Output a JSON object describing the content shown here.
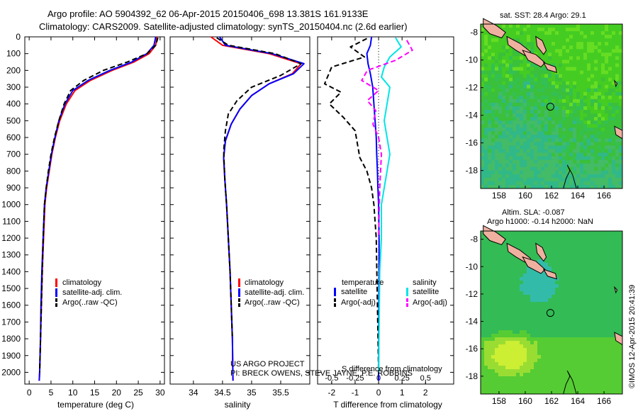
{
  "header": {
    "title_line1": "Argo profile: AO 5904392_62 06-Apr-2015 20150406_698 13.381S 161.9133E",
    "title_line2": "Climatology: CARS2009. Satellite-adjusted climatology: synTS_20150404.nc (2.6d earlier)"
  },
  "colors": {
    "climatology": "#ff0000",
    "satellite": "#0000ff",
    "argo": "#000000",
    "salinity_satellite": "#00e5e5",
    "salinity_argo": "#ff00ff",
    "land": "#f0b0a0",
    "ocean_high": "#33cc33",
    "ocean_low": "#2fb9b0"
  },
  "chart_data": [
    {
      "type": "line",
      "id": "temperature",
      "xlabel": "temperature (deg C)",
      "xlim": [
        -1,
        31
      ],
      "ylim": [
        2070,
        0
      ],
      "xticks": [
        0,
        5,
        10,
        15,
        20,
        25,
        30
      ],
      "yticks": [
        0,
        100,
        200,
        300,
        400,
        500,
        600,
        700,
        800,
        900,
        1000,
        1100,
        1200,
        1300,
        1400,
        1500,
        1600,
        1700,
        1800,
        1900,
        2000
      ],
      "legend": [
        "climatology",
        "satellite-adj. clim.",
        "Argo(..raw -QC)"
      ],
      "series": [
        {
          "name": "climatology",
          "style": "solid",
          "color": "#ff0000",
          "x": [
            29.3,
            29.0,
            27.5,
            24.0,
            19.0,
            14.0,
            10.5,
            8.5,
            7.0,
            6.0,
            5.2,
            4.6,
            4.0,
            3.6,
            3.3,
            3.0,
            2.8,
            2.6,
            2.5,
            2.4,
            2.3
          ],
          "y": [
            0,
            50,
            100,
            150,
            200,
            260,
            320,
            400,
            500,
            600,
            700,
            800,
            900,
            1000,
            1200,
            1400,
            1600,
            1800,
            1900,
            2000,
            2050
          ]
        },
        {
          "name": "satellite-adj. clim.",
          "style": "solid",
          "color": "#0000ff",
          "x": [
            29.0,
            28.6,
            27.0,
            23.5,
            18.5,
            13.5,
            10.0,
            8.2,
            6.8,
            5.9,
            5.1,
            4.5,
            3.9,
            3.5,
            3.2,
            2.9,
            2.7,
            2.6,
            2.5,
            2.4,
            2.3
          ],
          "y": [
            0,
            50,
            100,
            150,
            200,
            260,
            320,
            400,
            500,
            600,
            700,
            800,
            900,
            1000,
            1200,
            1400,
            1600,
            1800,
            1900,
            2000,
            2050
          ]
        },
        {
          "name": "Argo(..raw -QC)",
          "style": "dashed",
          "color": "#000000",
          "x": [
            29.5,
            29.0,
            27.0,
            22.5,
            17.0,
            12.5,
            9.5,
            8.0,
            6.8,
            5.8,
            5.0,
            4.4,
            3.9,
            3.5,
            3.2,
            3.0,
            2.8,
            2.6,
            2.5,
            2.4
          ],
          "y": [
            5,
            50,
            100,
            150,
            200,
            260,
            320,
            400,
            500,
            600,
            700,
            800,
            900,
            1000,
            1200,
            1400,
            1600,
            1800,
            1900,
            2000
          ]
        }
      ]
    },
    {
      "type": "line",
      "id": "salinity",
      "xlabel": "salinity",
      "xlim": [
        33.6,
        36.0
      ],
      "ylim": [
        2070,
        0
      ],
      "xticks": [
        34,
        34.5,
        35,
        35.5
      ],
      "legend": [
        "climatology",
        "satellite-adj. clim.",
        "Argo(..raw -QC)"
      ],
      "series": [
        {
          "name": "climatology",
          "style": "solid",
          "color": "#ff0000",
          "x": [
            34.3,
            34.5,
            35.3,
            35.85,
            35.7,
            35.3,
            35.0,
            34.8,
            34.65,
            34.55,
            34.52,
            34.54,
            34.57,
            34.6,
            34.63,
            34.65,
            34.67,
            34.68
          ],
          "y": [
            0,
            50,
            100,
            160,
            220,
            280,
            350,
            430,
            520,
            620,
            720,
            850,
            1000,
            1200,
            1400,
            1600,
            1800,
            2050
          ]
        },
        {
          "name": "satellite-adj. clim.",
          "style": "solid",
          "color": "#0000ff",
          "x": [
            34.45,
            34.55,
            35.35,
            35.9,
            35.72,
            35.3,
            35.0,
            34.8,
            34.65,
            34.55,
            34.52,
            34.54,
            34.57,
            34.6,
            34.63,
            34.65,
            34.67,
            34.68
          ],
          "y": [
            0,
            50,
            100,
            160,
            220,
            280,
            350,
            430,
            520,
            620,
            720,
            850,
            1000,
            1200,
            1400,
            1600,
            1800,
            2050
          ]
        },
        {
          "name": "Argo(..raw -QC)",
          "style": "dashed",
          "color": "#000000",
          "x": [
            34.4,
            34.6,
            35.4,
            35.85,
            35.5,
            35.0,
            34.75,
            34.6,
            34.55,
            34.52,
            34.54,
            34.57,
            34.6,
            34.63,
            34.65,
            34.67
          ],
          "y": [
            5,
            50,
            100,
            160,
            230,
            300,
            380,
            460,
            560,
            680,
            850,
            1000,
            1200,
            1400,
            1600,
            1800
          ]
        }
      ]
    },
    {
      "type": "line",
      "id": "difference",
      "xlabel": "T difference from climatology",
      "top_label": "S difference from climatology",
      "xlim": [
        -2.6,
        3.2
      ],
      "ylim": [
        2070,
        0
      ],
      "xticks": [
        -2,
        -1,
        0,
        1,
        2
      ],
      "s_xticks": [
        -0.5,
        -0.25,
        0,
        0.25,
        0.5
      ],
      "legend": {
        "temperature_heading": "temperature",
        "salinity_heading": "salinity",
        "items": [
          "satellite",
          "Argo(-adj)",
          "satellite",
          "Argo(-adj)"
        ]
      },
      "series": [
        {
          "name": "satellite",
          "group": "temperature",
          "style": "solid",
          "color": "#0000ff",
          "x": [
            -0.3,
            -0.35,
            -0.5,
            -0.45,
            -0.35,
            -0.25,
            -0.2,
            -0.15,
            -0.1,
            -0.08,
            -0.05,
            -0.03,
            0,
            0.02,
            0.02,
            0.01,
            0
          ],
          "y": [
            0,
            50,
            100,
            160,
            220,
            300,
            400,
            500,
            600,
            700,
            800,
            900,
            1000,
            1200,
            1400,
            1600,
            2050
          ]
        },
        {
          "name": "Argo(-adj)",
          "group": "temperature",
          "style": "dashed",
          "color": "#000000",
          "x": [
            -0.5,
            -1.2,
            -0.6,
            -2.0,
            -2.3,
            -1.6,
            -2.1,
            -1.5,
            -1.0,
            -0.9,
            -0.8,
            -0.5,
            -0.3,
            -0.2,
            -0.1,
            0
          ],
          "y": [
            10,
            60,
            120,
            180,
            280,
            330,
            400,
            480,
            560,
            640,
            720,
            800,
            900,
            1000,
            1200,
            2000
          ]
        },
        {
          "name": "satellite",
          "group": "salinity",
          "style": "solid",
          "color": "#00e5e5",
          "x": [
            0.3,
            0.4,
            0.2,
            0.1,
            0.05,
            0.2,
            0.15,
            0.1,
            0.15,
            0.2,
            0.15,
            0.1,
            0.05,
            0.05,
            0.02,
            0
          ],
          "y": [
            5,
            60,
            120,
            180,
            240,
            300,
            400,
            500,
            600,
            700,
            800,
            900,
            1000,
            1200,
            1400,
            2000
          ]
        },
        {
          "name": "Argo(-adj)",
          "group": "salinity",
          "style": "dashed",
          "color": "#ff00ff",
          "x": [
            0.5,
            0.6,
            0.3,
            -0.2,
            -0.3,
            0,
            -0.2,
            -0.05,
            -0.1,
            0,
            0.05,
            0.02,
            0
          ],
          "y": [
            20,
            80,
            140,
            200,
            260,
            320,
            380,
            440,
            520,
            600,
            700,
            900,
            1200
          ]
        }
      ]
    },
    {
      "type": "heatmap",
      "id": "sst_map",
      "title": "sat. SST: 28.4  Argo: 29.1",
      "xticks": [
        158,
        160,
        162,
        164,
        166
      ],
      "yticks": [
        -8,
        -10,
        -12,
        -14,
        -16,
        -18
      ],
      "xlim": [
        156.6,
        167.4
      ],
      "ylim": [
        -19.3,
        -7.4
      ],
      "marker": {
        "lon": 161.9133,
        "lat": -13.381
      }
    },
    {
      "type": "heatmap",
      "id": "sla_map",
      "title_line1": "Altim. SLA: -0.087",
      "title_line2": "Argo h1000: -0.14 h2000: NaN",
      "xticks": [
        158,
        160,
        162,
        164,
        166
      ],
      "yticks": [
        -8,
        -10,
        -12,
        -14,
        -16,
        -18
      ],
      "xlim": [
        156.6,
        167.4
      ],
      "ylim": [
        -19.3,
        -7.4
      ],
      "marker": {
        "lon": 161.9133,
        "lat": -13.381
      }
    }
  ],
  "footer": {
    "project_line1": "US ARGO PROJECT",
    "project_line2": "PI: BRECK OWENS, STEVE JAYNE, P.E. ROBBINS",
    "side_credit": "©IMOS 12-Apr-2015 20:41:39"
  }
}
